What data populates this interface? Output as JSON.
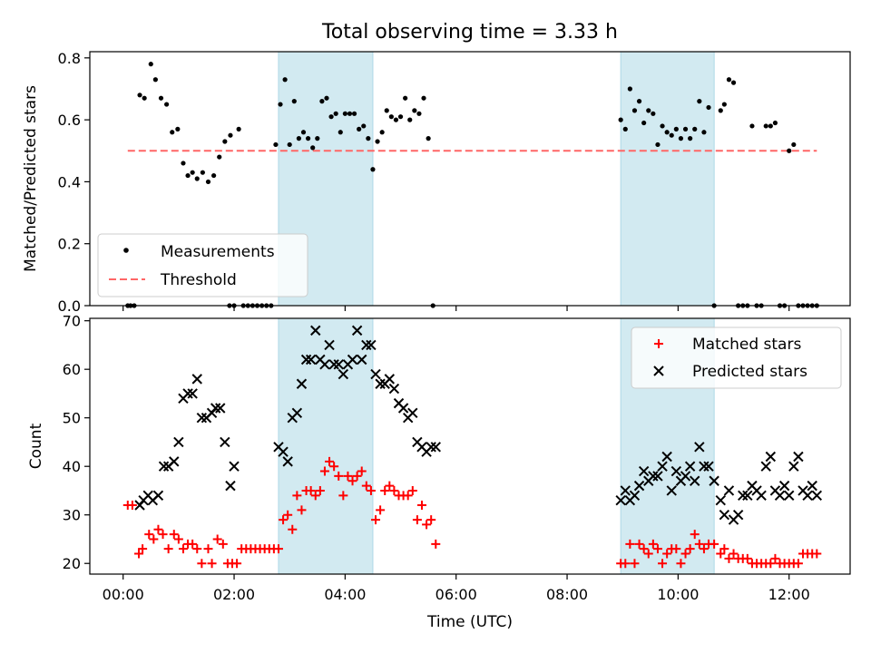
{
  "figure": {
    "title": "Total observing time = 3.33 h"
  },
  "chart_data": [
    {
      "type": "scatter",
      "panel": "top",
      "ylabel": "Matched/Predicted stars",
      "xlim_hours": [
        -0.6,
        13.1
      ],
      "ylim": [
        0,
        0.82
      ],
      "y_ticks": [
        0.0,
        0.2,
        0.4,
        0.6,
        0.8
      ],
      "y_tick_labels": [
        "0.0",
        "0.2",
        "0.4",
        "0.6",
        "0.8"
      ],
      "legend": {
        "placement": "lower-left",
        "entries": [
          "Measurements",
          "Threshold"
        ]
      },
      "observing_windows_utc": [
        [
          "02:48",
          "04:30"
        ],
        [
          "08:58",
          "10:39"
        ]
      ],
      "window_color": "#add8e6",
      "threshold": {
        "name": "Threshold",
        "value": 0.5,
        "x_range_utc": [
          "00:05",
          "12:30"
        ],
        "color": "#ff6666",
        "style": "dashed"
      },
      "series": [
        {
          "name": "Measurements",
          "color": "#000000",
          "x_utc": [
            "00:05",
            "00:08",
            "00:12",
            "00:18",
            "00:23",
            "00:30",
            "00:35",
            "00:41",
            "00:47",
            "00:53",
            "00:59",
            "01:05",
            "01:10",
            "01:15",
            "01:20",
            "01:26",
            "01:32",
            "01:38",
            "01:44",
            "01:50",
            "01:56",
            "01:55",
            "02:00",
            "02:05",
            "02:10",
            "02:15",
            "02:20",
            "02:25",
            "02:30",
            "02:35",
            "02:40",
            "02:45",
            "02:50",
            "02:55",
            "03:00",
            "03:05",
            "03:10",
            "03:15",
            "03:20",
            "03:25",
            "03:30",
            "03:35",
            "03:40",
            "03:45",
            "03:50",
            "03:55",
            "04:00",
            "04:05",
            "04:10",
            "04:15",
            "04:20",
            "04:25",
            "04:30",
            "04:35",
            "04:40",
            "04:45",
            "04:50",
            "04:55",
            "05:00",
            "05:05",
            "05:10",
            "05:15",
            "05:20",
            "05:25",
            "05:30",
            "05:35",
            "08:58",
            "09:03",
            "09:08",
            "09:13",
            "09:18",
            "09:23",
            "09:28",
            "09:33",
            "09:38",
            "09:43",
            "09:48",
            "09:53",
            "09:58",
            "10:03",
            "10:08",
            "10:13",
            "10:18",
            "10:23",
            "10:28",
            "10:33",
            "10:39",
            "10:46",
            "10:50",
            "10:55",
            "11:00",
            "11:05",
            "11:10",
            "11:15",
            "11:20",
            "11:25",
            "11:30",
            "11:35",
            "11:40",
            "11:45",
            "11:50",
            "11:55",
            "12:00",
            "12:05",
            "12:10",
            "12:15",
            "12:20",
            "12:25",
            "12:30"
          ],
          "y": [
            0.0,
            0.0,
            0.0,
            0.68,
            0.67,
            0.78,
            0.73,
            0.67,
            0.65,
            0.56,
            0.57,
            0.46,
            0.42,
            0.43,
            0.41,
            0.43,
            0.4,
            0.42,
            0.48,
            0.53,
            0.55,
            0.0,
            0.0,
            0.57,
            0.0,
            0.0,
            0.0,
            0.0,
            0.0,
            0.0,
            0.0,
            0.52,
            0.65,
            0.73,
            0.52,
            0.66,
            0.54,
            0.56,
            0.54,
            0.51,
            0.54,
            0.66,
            0.67,
            0.61,
            0.62,
            0.56,
            0.62,
            0.62,
            0.62,
            0.57,
            0.58,
            0.54,
            0.44,
            0.53,
            0.56,
            0.63,
            0.61,
            0.6,
            0.61,
            0.67,
            0.6,
            0.63,
            0.62,
            0.67,
            0.54,
            0.0,
            0.6,
            0.57,
            0.7,
            0.63,
            0.66,
            0.59,
            0.63,
            0.62,
            0.52,
            0.58,
            0.56,
            0.55,
            0.57,
            0.54,
            0.57,
            0.54,
            0.57,
            0.66,
            0.56,
            0.64,
            0.0,
            0.63,
            0.65,
            0.73,
            0.72,
            0.0,
            0.0,
            0.0,
            0.58,
            0.0,
            0.0,
            0.58,
            0.58,
            0.59,
            0.0,
            0.0,
            0.5,
            0.52,
            0.0,
            0.0,
            0.0,
            0.0,
            0.0
          ]
        }
      ]
    },
    {
      "type": "scatter",
      "panel": "bottom",
      "xlabel": "Time (UTC)",
      "ylabel": "Count",
      "xlim_hours": [
        -0.6,
        13.1
      ],
      "ylim": [
        17.8,
        70.5
      ],
      "x_ticks_utc": [
        "00:00",
        "02:00",
        "04:00",
        "06:00",
        "08:00",
        "10:00",
        "12:00"
      ],
      "y_ticks": [
        20,
        30,
        40,
        50,
        60,
        70
      ],
      "y_tick_labels": [
        "20",
        "30",
        "40",
        "50",
        "60",
        "70"
      ],
      "legend": {
        "placement": "upper-right",
        "entries": [
          "Matched stars",
          "Predicted stars"
        ]
      },
      "observing_windows_utc": [
        [
          "02:48",
          "04:30"
        ],
        [
          "08:58",
          "10:39"
        ]
      ],
      "window_color": "#add8e6",
      "series": [
        {
          "name": "Matched stars",
          "marker": "+",
          "color": "#ff0000",
          "x_utc": [
            "00:05",
            "00:10",
            "00:17",
            "00:21",
            "00:28",
            "00:33",
            "00:38",
            "00:43",
            "00:49",
            "00:55",
            "01:00",
            "01:05",
            "01:10",
            "01:15",
            "01:20",
            "01:25",
            "01:32",
            "01:36",
            "01:42",
            "01:48",
            "01:53",
            "01:58",
            "02:03",
            "02:08",
            "02:13",
            "02:18",
            "02:23",
            "02:28",
            "02:33",
            "02:38",
            "02:43",
            "02:48",
            "02:53",
            "02:58",
            "03:03",
            "03:08",
            "03:13",
            "03:18",
            "03:23",
            "03:28",
            "03:33",
            "03:38",
            "03:43",
            "03:48",
            "03:53",
            "03:58",
            "04:03",
            "04:08",
            "04:13",
            "04:18",
            "04:23",
            "04:28",
            "04:33",
            "04:38",
            "04:43",
            "04:48",
            "04:53",
            "04:58",
            "05:03",
            "05:08",
            "05:13",
            "05:18",
            "05:23",
            "05:28",
            "05:33",
            "05:38",
            "08:58",
            "09:03",
            "09:08",
            "09:13",
            "09:18",
            "09:23",
            "09:28",
            "09:33",
            "09:38",
            "09:43",
            "09:48",
            "09:53",
            "09:58",
            "10:03",
            "10:08",
            "10:13",
            "10:18",
            "10:23",
            "10:28",
            "10:33",
            "10:39",
            "10:46",
            "10:50",
            "10:55",
            "11:00",
            "11:05",
            "11:10",
            "11:15",
            "11:20",
            "11:25",
            "11:30",
            "11:35",
            "11:40",
            "11:45",
            "11:50",
            "11:55",
            "12:00",
            "12:05",
            "12:10",
            "12:15",
            "12:20",
            "12:25",
            "12:30"
          ],
          "y": [
            32,
            32,
            22,
            23,
            26,
            25,
            27,
            26,
            23,
            26,
            25,
            23,
            24,
            24,
            23,
            20,
            23,
            20,
            25,
            24,
            20,
            20,
            20,
            23,
            23,
            23,
            23,
            23,
            23,
            23,
            23,
            23,
            29,
            30,
            27,
            34,
            31,
            35,
            35,
            34,
            35,
            39,
            41,
            40,
            38,
            34,
            38,
            37,
            38,
            39,
            36,
            35,
            29,
            31,
            35,
            36,
            35,
            34,
            34,
            34,
            35,
            29,
            32,
            28,
            29,
            24,
            20,
            20,
            24,
            20,
            24,
            23,
            22,
            24,
            23,
            20,
            22,
            23,
            23,
            20,
            22,
            23,
            26,
            24,
            23,
            24,
            24,
            22,
            23,
            21,
            22,
            21,
            21,
            21,
            20,
            20,
            20,
            20,
            20,
            21,
            20,
            20,
            20,
            20,
            20,
            22,
            22,
            22,
            22
          ]
        },
        {
          "name": "Predicted stars",
          "marker": "x",
          "color": "#000000",
          "x_utc": [
            "00:18",
            "00:22",
            "00:27",
            "00:32",
            "00:38",
            "00:44",
            "00:49",
            "00:55",
            "01:00",
            "01:05",
            "01:10",
            "01:15",
            "01:20",
            "01:25",
            "01:30",
            "01:36",
            "01:40",
            "01:45",
            "01:50",
            "01:56",
            "02:00",
            "02:48",
            "02:53",
            "02:58",
            "03:03",
            "03:08",
            "03:13",
            "03:18",
            "03:23",
            "03:28",
            "03:33",
            "03:38",
            "03:43",
            "03:48",
            "03:53",
            "03:58",
            "04:03",
            "04:08",
            "04:13",
            "04:18",
            "04:23",
            "04:28",
            "04:33",
            "04:38",
            "04:43",
            "04:48",
            "04:53",
            "04:58",
            "05:03",
            "05:08",
            "05:13",
            "05:18",
            "05:23",
            "05:28",
            "05:33",
            "05:38",
            "08:58",
            "09:03",
            "09:08",
            "09:13",
            "09:18",
            "09:23",
            "09:28",
            "09:33",
            "09:38",
            "09:43",
            "09:48",
            "09:53",
            "09:58",
            "10:03",
            "10:08",
            "10:13",
            "10:18",
            "10:23",
            "10:28",
            "10:33",
            "10:39",
            "10:46",
            "10:50",
            "10:55",
            "11:00",
            "11:05",
            "11:10",
            "11:15",
            "11:20",
            "11:25",
            "11:30",
            "11:35",
            "11:40",
            "11:45",
            "11:50",
            "11:55",
            "12:00",
            "12:05",
            "12:10",
            "12:15",
            "12:20",
            "12:25",
            "12:30"
          ],
          "y": [
            32,
            33,
            34,
            33,
            34,
            40,
            40,
            41,
            45,
            54,
            55,
            55,
            58,
            50,
            50,
            51,
            52,
            52,
            45,
            36,
            40,
            44,
            43,
            41,
            50,
            51,
            57,
            62,
            62,
            68,
            62,
            61,
            65,
            61,
            61,
            59,
            61,
            62,
            68,
            62,
            65,
            65,
            59,
            57,
            57,
            58,
            56,
            53,
            52,
            50,
            51,
            45,
            44,
            43,
            44,
            44,
            33,
            35,
            33,
            34,
            36,
            39,
            37,
            38,
            38,
            40,
            42,
            35,
            39,
            37,
            38,
            40,
            37,
            44,
            40,
            40,
            37,
            33,
            30,
            35,
            29,
            30,
            34,
            34,
            36,
            35,
            34,
            40,
            42,
            35,
            34,
            36,
            34,
            40,
            42,
            35,
            34,
            36,
            34
          ]
        }
      ]
    }
  ]
}
